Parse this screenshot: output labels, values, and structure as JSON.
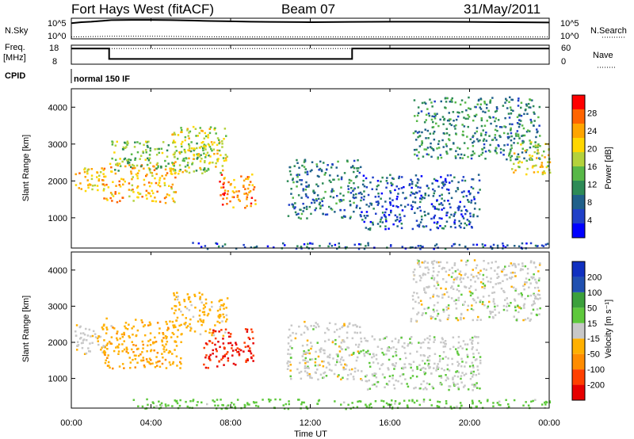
{
  "header": {
    "station": "Fort Hays West (fitACF)",
    "beam": "Beam 07",
    "date": "31/May/2011"
  },
  "top_panels": {
    "nsky_label": "N.Sky",
    "nsearch_label": "N.Search",
    "noise_ticks": [
      "10^5",
      "10^0"
    ],
    "freq_label_1": "Freq.",
    "freq_label_2": "[MHz]",
    "freq_ticks": [
      "18",
      "8"
    ],
    "nave_label": "Nave",
    "nave_ticks": [
      "60",
      "0"
    ],
    "cpid_label": "CPID",
    "cpid_value": "normal 150 IF"
  },
  "axes": {
    "xlabel": "Time UT",
    "ylabel": "Slant Range [km]",
    "xticks": [
      "00:00",
      "04:00",
      "08:00",
      "12:00",
      "16:00",
      "20:00",
      "00:00"
    ],
    "yticks": [
      "1000",
      "2000",
      "3000",
      "4000"
    ]
  },
  "colorbars": {
    "power": {
      "label": "Power [dB]",
      "ticks": [
        "4",
        "8",
        "12",
        "16",
        "20",
        "24",
        "28"
      ],
      "colors": [
        "#0000ff",
        "#2040c8",
        "#20608a",
        "#2e8b57",
        "#58b848",
        "#b4d23c",
        "#ffd700",
        "#ffa500",
        "#ff6400",
        "#ff0000"
      ]
    },
    "velocity": {
      "label": "Velocity [m s⁻¹]",
      "ticks": [
        "-200",
        "-100",
        "-50",
        "-15",
        "15",
        "50",
        "100",
        "200"
      ],
      "colors": [
        "#e60000",
        "#ff4000",
        "#ff8c00",
        "#ffb000",
        "#c8c8c8",
        "#5ec83c",
        "#3ca03c",
        "#2050b0",
        "#1030c0"
      ]
    }
  },
  "chart_data": [
    {
      "type": "line",
      "title": "N.Sky / N.Search",
      "x_unit": "hours UT",
      "y_scale": "log",
      "ylim": [
        1,
        100000
      ],
      "series": [
        {
          "name": "N.Sky",
          "x": [
            0,
            0.5,
            1,
            2,
            3,
            4,
            5,
            6,
            7,
            8,
            9,
            10,
            12,
            14,
            16,
            18,
            20,
            22,
            24
          ],
          "y": [
            8000,
            15000,
            20000,
            50000,
            60000,
            60000,
            50000,
            40000,
            30000,
            25000,
            20000,
            18000,
            15000,
            18000,
            20000,
            20000,
            18000,
            15000,
            12000
          ]
        },
        {
          "name": "N.Search",
          "x": [
            0,
            2,
            4,
            8,
            12,
            16,
            20,
            24
          ],
          "y": [
            2,
            3,
            3,
            2,
            2,
            2,
            2,
            2
          ]
        }
      ]
    },
    {
      "type": "line",
      "title": "Freq. / Nave",
      "x_unit": "hours UT",
      "ylim": [
        8,
        18
      ],
      "series": [
        {
          "name": "Freq.",
          "x": [
            0,
            1.9,
            1.9,
            14.1,
            14.1,
            24
          ],
          "y": [
            17,
            17,
            11,
            11,
            17,
            17
          ]
        },
        {
          "name": "Nave",
          "x": [
            0,
            24
          ],
          "y": [
            17,
            17
          ]
        }
      ]
    },
    {
      "type": "heatmap",
      "title": "Power [dB]",
      "xlabel": "Time UT",
      "ylabel": "Slant Range [km]",
      "xlim": [
        0,
        24
      ],
      "ylim": [
        180,
        4500
      ],
      "zlim": [
        0,
        30
      ],
      "regions": [
        {
          "t": [
            0.1,
            1.6
          ],
          "r": [
            1750,
            2400
          ],
          "power": 20
        },
        {
          "t": [
            1.5,
            5.2
          ],
          "r": [
            1400,
            2500
          ],
          "power": 22
        },
        {
          "t": [
            2.0,
            7.0
          ],
          "r": [
            2300,
            3100
          ],
          "power": 14
        },
        {
          "t": [
            5.0,
            7.8
          ],
          "r": [
            2200,
            3500
          ],
          "power": 18
        },
        {
          "t": [
            7.4,
            9.3
          ],
          "r": [
            1250,
            2200
          ],
          "power": 24
        },
        {
          "t": [
            10.8,
            14.5
          ],
          "r": [
            1000,
            2600
          ],
          "power": 9
        },
        {
          "t": [
            14.5,
            20.5
          ],
          "r": [
            700,
            2200
          ],
          "power": 6
        },
        {
          "t": [
            17.0,
            23.5
          ],
          "r": [
            2600,
            4300
          ],
          "power": 10
        },
        {
          "t": [
            22.0,
            24.0
          ],
          "r": [
            2200,
            3100
          ],
          "power": 18
        },
        {
          "t": [
            6.0,
            24.0
          ],
          "r": [
            180,
            350
          ],
          "power": 6
        }
      ]
    },
    {
      "type": "heatmap",
      "title": "Velocity [m s⁻¹]",
      "xlabel": "Time UT",
      "ylabel": "Slant Range [km]",
      "xlim": [
        0,
        24
      ],
      "ylim": [
        180,
        4500
      ],
      "zlim": [
        -250,
        250
      ],
      "regions": [
        {
          "t": [
            0.1,
            2.0
          ],
          "r": [
            1700,
            2500
          ],
          "velocity": -5
        },
        {
          "t": [
            1.5,
            5.5
          ],
          "r": [
            1300,
            2700
          ],
          "velocity": -40
        },
        {
          "t": [
            5.0,
            7.8
          ],
          "r": [
            2200,
            3400
          ],
          "velocity": -30
        },
        {
          "t": [
            6.6,
            9.1
          ],
          "r": [
            1300,
            2400
          ],
          "velocity": -200
        },
        {
          "t": [
            10.8,
            14.5
          ],
          "r": [
            1000,
            2600
          ],
          "velocity": 0
        },
        {
          "t": [
            14.5,
            20.5
          ],
          "r": [
            700,
            2200
          ],
          "velocity": 5
        },
        {
          "t": [
            17.0,
            23.5
          ],
          "r": [
            2600,
            4300
          ],
          "velocity": 0
        },
        {
          "t": [
            3.0,
            24.0
          ],
          "r": [
            180,
            450
          ],
          "velocity": 30
        }
      ]
    }
  ]
}
